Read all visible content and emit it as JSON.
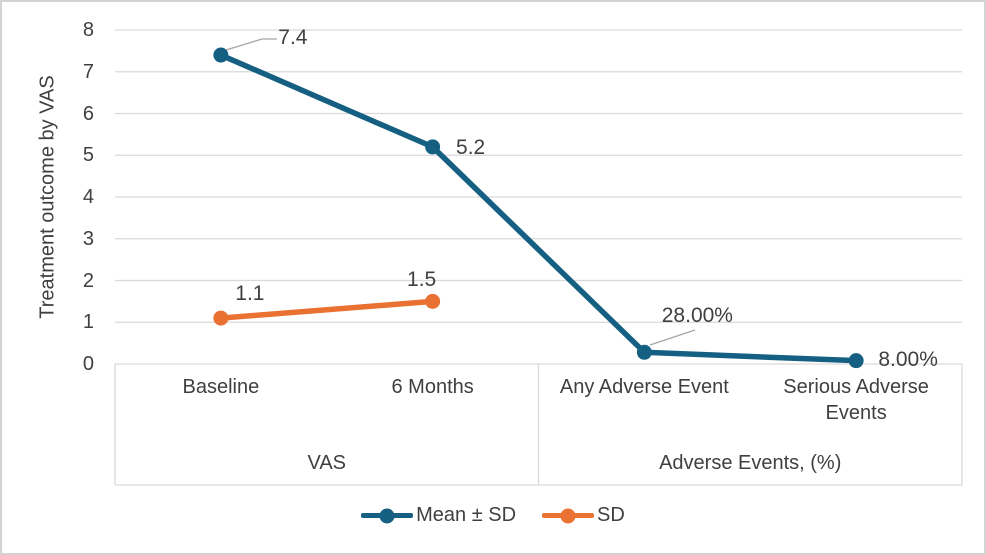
{
  "y_axis": {
    "title": "Treatment outcome by VAS",
    "ticks": [
      0,
      1,
      2,
      3,
      4,
      5,
      6,
      7,
      8
    ]
  },
  "legend": {
    "items": [
      {
        "label": "Mean ± SD",
        "color": "#156082"
      },
      {
        "label": "SD",
        "color": "#E97132"
      }
    ]
  },
  "colors": {
    "gridline": "#D9D9D9",
    "leader_line": "#A6A6A6",
    "text": "#3F3F3F"
  },
  "chart_data": {
    "type": "line",
    "title": "",
    "xlabel": "",
    "ylabel": "Treatment outcome by VAS",
    "ylim": [
      0,
      8
    ],
    "grid": "horizontal",
    "legend_position": "bottom",
    "categories": [
      "Baseline",
      "6 Months",
      "Any Adverse Event",
      "Serious Adverse Events"
    ],
    "category_groups": [
      {
        "label": "VAS",
        "span": [
          0,
          1
        ]
      },
      {
        "label": "Adverse Events, (%)",
        "span": [
          2,
          3
        ]
      }
    ],
    "series": [
      {
        "name": "Mean ± SD",
        "color": "#156082",
        "points": [
          {
            "x": 0,
            "y": 7.4,
            "label": "7.4"
          },
          {
            "x": 1,
            "y": 5.2,
            "label": "5.2"
          },
          {
            "x": 2,
            "y": 0.28,
            "label": "28.00%"
          },
          {
            "x": 3,
            "y": 0.08,
            "label": "8.00%"
          }
        ]
      },
      {
        "name": "SD",
        "color": "#E97132",
        "points": [
          {
            "x": 0,
            "y": 1.1,
            "label": "1.1"
          },
          {
            "x": 1,
            "y": 1.5,
            "label": "1.5"
          }
        ]
      }
    ]
  }
}
